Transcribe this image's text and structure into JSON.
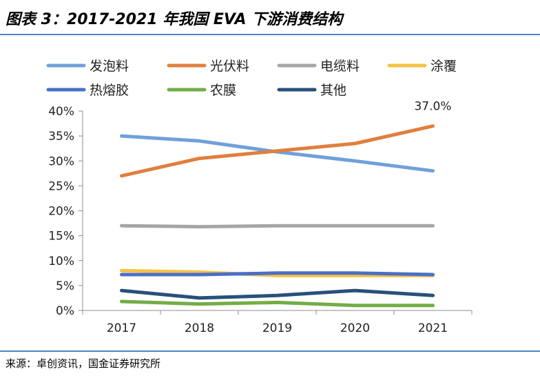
{
  "header": {
    "title": "图表 3：2017-2021 年我国 EVA 下游消费结构"
  },
  "footer": {
    "source": "来源：卓创资讯，国金证券研究所"
  },
  "chart_data": {
    "type": "line",
    "title": "",
    "xlabel": "",
    "ylabel": "",
    "categories": [
      "2017",
      "2018",
      "2019",
      "2020",
      "2021"
    ],
    "ylim": [
      0,
      40
    ],
    "yticks": [
      "0%",
      "5%",
      "10%",
      "15%",
      "20%",
      "25%",
      "30%",
      "35%",
      "40%"
    ],
    "grid": false,
    "legend_position": "top",
    "series": [
      {
        "name": "发泡料",
        "color": "#6fa0da",
        "values": [
          35.0,
          34.0,
          31.8,
          30.0,
          28.0
        ]
      },
      {
        "name": "光伏料",
        "color": "#e07f3e",
        "values": [
          27.0,
          30.5,
          32.0,
          33.5,
          37.0
        ]
      },
      {
        "name": "电缆料",
        "color": "#a6a6a6",
        "values": [
          17.0,
          16.8,
          17.0,
          17.0,
          17.0
        ]
      },
      {
        "name": "涂覆",
        "color": "#f5c243",
        "values": [
          8.0,
          7.7,
          7.0,
          7.0,
          7.0
        ]
      },
      {
        "name": "热熔胶",
        "color": "#4a6fc9",
        "values": [
          7.2,
          7.2,
          7.5,
          7.5,
          7.2
        ]
      },
      {
        "name": "农膜",
        "color": "#73ad47",
        "values": [
          1.8,
          1.3,
          1.6,
          1.0,
          1.0
        ]
      },
      {
        "name": "其他",
        "color": "#28507a",
        "values": [
          4.0,
          2.5,
          3.0,
          4.0,
          3.0
        ]
      }
    ],
    "annotations": [
      {
        "series": "光伏料",
        "category": "2021",
        "text": "37.0%"
      }
    ]
  }
}
